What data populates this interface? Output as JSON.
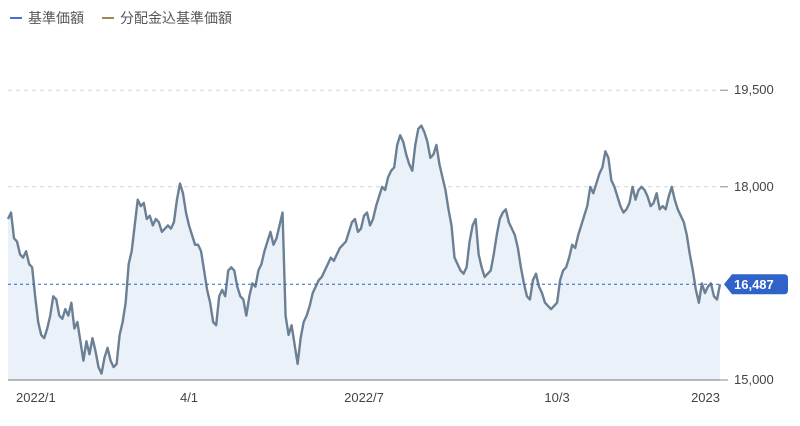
{
  "legend": [
    {
      "label": "基準価額",
      "color": "#3d6fd8"
    },
    {
      "label": "分配金込基準価額",
      "color": "#9a8a4a"
    }
  ],
  "colors": {
    "line": "#6b8094",
    "fill": "#ebf1f9",
    "badge": "#2f63c8",
    "grid": "#cfd6de"
  },
  "current_value_label": "16,487",
  "chart_data": {
    "type": "area",
    "title": "",
    "xlabel": "",
    "ylabel": "",
    "ylim": [
      15000,
      20000
    ],
    "yticks": [
      15000,
      18000,
      19500
    ],
    "ytick_labels": [
      "15,000",
      "18,000",
      "19,500"
    ],
    "xticks": [
      {
        "index": 4,
        "label": "2022/1"
      },
      {
        "index": 60,
        "label": "4/1"
      },
      {
        "index": 118,
        "label": "2022/7"
      },
      {
        "index": 182,
        "label": "10/3"
      },
      {
        "index": 244,
        "label": "2023"
      }
    ],
    "current_value": 16487,
    "series": [
      {
        "values": [
          17500,
          17600,
          17200,
          17150,
          16950,
          16900,
          17000,
          16800,
          16750,
          16300,
          15900,
          15700,
          15650,
          15800,
          16000,
          16300,
          16250,
          16000,
          15950,
          16100,
          16000,
          16200,
          15800,
          15900,
          15600,
          15300,
          15600,
          15400,
          15650,
          15450,
          15200,
          15100,
          15350,
          15500,
          15300,
          15200,
          15250,
          15700,
          15900,
          16200,
          16800,
          17000,
          17400,
          17800,
          17700,
          17750,
          17500,
          17550,
          17400,
          17500,
          17450,
          17300,
          17350,
          17400,
          17350,
          17450,
          17800,
          18050,
          17900,
          17600,
          17400,
          17250,
          17100,
          17100,
          17000,
          16700,
          16400,
          16200,
          15900,
          15850,
          16300,
          16400,
          16300,
          16700,
          16750,
          16700,
          16450,
          16300,
          16250,
          16000,
          16300,
          16500,
          16450,
          16700,
          16800,
          17000,
          17150,
          17300,
          17100,
          17200,
          17400,
          17600,
          16000,
          15700,
          15850,
          15550,
          15250,
          15650,
          15900,
          16000,
          16150,
          16350,
          16450,
          16550,
          16600,
          16700,
          16800,
          16900,
          16850,
          16950,
          17050,
          17100,
          17150,
          17300,
          17450,
          17500,
          17300,
          17350,
          17550,
          17600,
          17400,
          17500,
          17700,
          17850,
          18000,
          17950,
          18150,
          18250,
          18300,
          18650,
          18800,
          18700,
          18500,
          18350,
          18250,
          18650,
          18900,
          18950,
          18850,
          18700,
          18450,
          18500,
          18650,
          18350,
          18150,
          17950,
          17650,
          17400,
          16900,
          16800,
          16700,
          16650,
          16750,
          17150,
          17400,
          17500,
          16950,
          16750,
          16600,
          16650,
          16700,
          16950,
          17250,
          17500,
          17600,
          17650,
          17450,
          17350,
          17250,
          17050,
          16750,
          16500,
          16300,
          16250,
          16550,
          16650,
          16450,
          16350,
          16200,
          16150,
          16100,
          16150,
          16200,
          16550,
          16700,
          16750,
          16900,
          17100,
          17050,
          17250,
          17400,
          17550,
          17700,
          18000,
          17900,
          18050,
          18200,
          18300,
          18550,
          18450,
          18100,
          18000,
          17850,
          17700,
          17600,
          17650,
          17750,
          18000,
          17800,
          17950,
          18000,
          17950,
          17850,
          17700,
          17750,
          17900,
          17650,
          17700,
          17650,
          17850,
          18000,
          17800,
          17650,
          17550,
          17450,
          17250,
          16950,
          16700,
          16400,
          16200,
          16500,
          16350,
          16450,
          16500,
          16300,
          16250,
          16487
        ]
      }
    ]
  }
}
